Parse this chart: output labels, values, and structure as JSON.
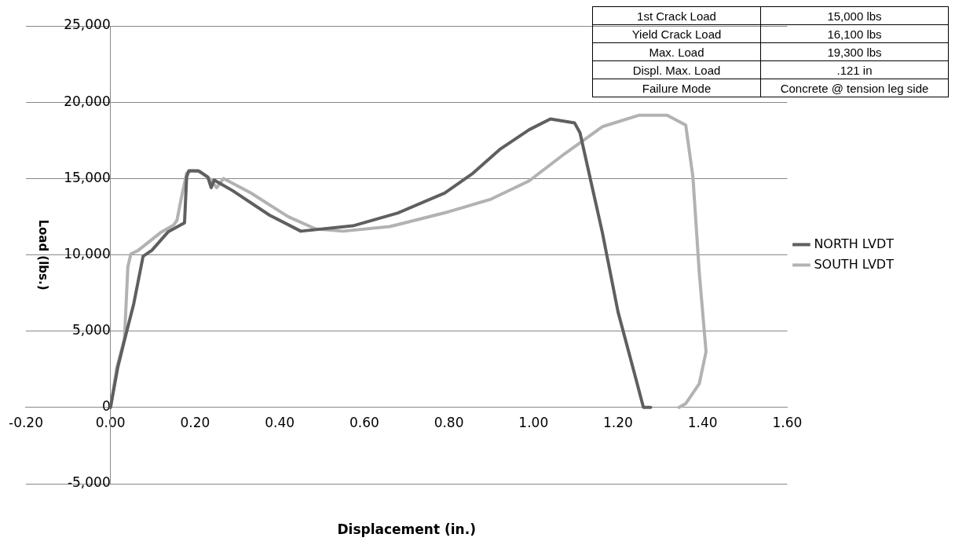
{
  "chart_data": {
    "type": "line",
    "xlabel": "Displacement (in.)",
    "ylabel": "Load (lbs.)",
    "xlim": [
      -0.2,
      1.6
    ],
    "xticks": [
      {
        "value": -0.2,
        "label": "-0.20"
      },
      {
        "value": 0,
        "label": "0.00"
      },
      {
        "value": 0.2,
        "label": "0.20"
      },
      {
        "value": 0.4,
        "label": "0.40"
      },
      {
        "value": 0.6,
        "label": "0.60"
      },
      {
        "value": 0.8,
        "label": "0.80"
      },
      {
        "value": 1,
        "label": "1.00"
      },
      {
        "value": 1.2,
        "label": "1.20"
      },
      {
        "value": 1.4,
        "label": "1.40"
      },
      {
        "value": 1.6,
        "label": "1.60"
      }
    ],
    "ylim": [
      -5000,
      25000
    ],
    "yticks": [
      {
        "value": -5000,
        "label": "-5,000"
      },
      {
        "value": 0,
        "label": "0"
      },
      {
        "value": 5000,
        "label": "5,000"
      },
      {
        "value": 10000,
        "label": "10,000"
      },
      {
        "value": 15000,
        "label": "15,000"
      },
      {
        "value": 20000,
        "label": "20,000"
      },
      {
        "value": 25000,
        "label": "25,000"
      }
    ],
    "grid": "y",
    "legend": "right",
    "marker": "none",
    "line_style": "solid",
    "annotations": [
      "1st Crack Load",
      "15,000 lbs",
      "Yield Crack Load",
      "16,100 lbs",
      "Max. Load",
      "19,300 lbs",
      "Displ. Max. Load",
      ".121 in",
      "Failure Mode",
      "Concrete @ tension leg side"
    ],
    "series": [
      {
        "name": "NORTH LVDT",
        "color": "#5f5f5f",
        "x": [
          0,
          0.017,
          0.033,
          0.055,
          0.077,
          0.098,
          0.136,
          0.175,
          0.18,
          0.185,
          0.208,
          0.23,
          0.238,
          0.245,
          0.289,
          0.376,
          0.45,
          0.573,
          0.68,
          0.79,
          0.857,
          0.92,
          0.99,
          1.04,
          1.097,
          1.11,
          1.163,
          1.2,
          1.24,
          1.26,
          1.277
        ],
        "values": [
          0,
          2600,
          4400,
          6800,
          9900,
          10300,
          11500,
          12100,
          15100,
          15500,
          15500,
          15100,
          14400,
          14900,
          14200,
          12600,
          11550,
          11900,
          12750,
          14050,
          15350,
          16900,
          18200,
          18900,
          18650,
          18000,
          11450,
          6250,
          2100,
          0,
          0
        ]
      },
      {
        "name": "SOUTH LVDT",
        "color": "#b2b2b2",
        "x": [
          0,
          0.015,
          0.033,
          0.041,
          0.048,
          0.066,
          0.118,
          0.149,
          0.157,
          0.168,
          0.18,
          0.19,
          0.212,
          0.234,
          0.251,
          0.267,
          0.332,
          0.42,
          0.485,
          0.55,
          0.66,
          0.79,
          0.9,
          0.99,
          1.075,
          1.163,
          1.25,
          1.316,
          1.36,
          1.377,
          1.392,
          1.408,
          1.392,
          1.36,
          1.344
        ],
        "values": [
          0,
          2600,
          4500,
          9200,
          10050,
          10300,
          11450,
          11950,
          12250,
          13800,
          15350,
          15500,
          15450,
          15000,
          14400,
          15000,
          14050,
          12500,
          11700,
          11550,
          11850,
          12750,
          13650,
          14850,
          16650,
          18400,
          19150,
          19150,
          18500,
          15100,
          8850,
          3650,
          1550,
          250,
          0
        ]
      }
    ]
  }
}
